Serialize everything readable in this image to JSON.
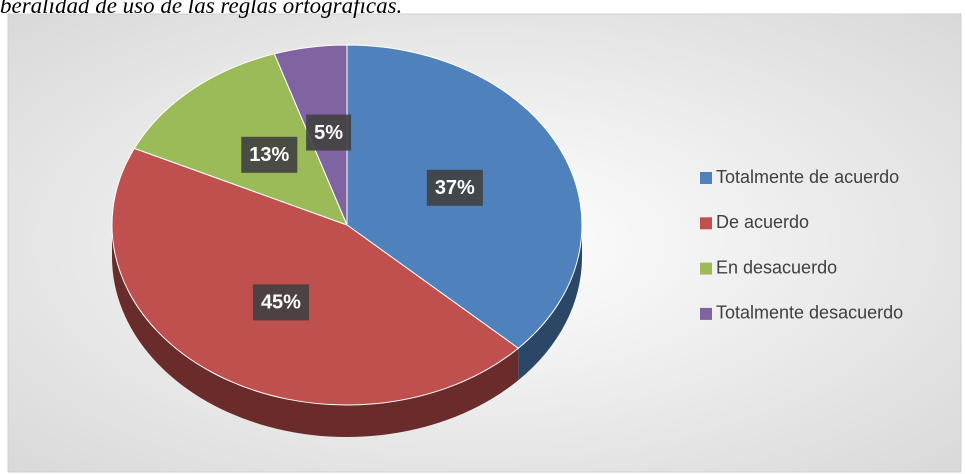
{
  "chart_data": {
    "type": "pie",
    "title": "beralidad de uso de las reglas ortográficas.",
    "categories": [
      "Totalmente de acuerdo",
      "De acuerdo",
      "En desacuerdo",
      "Totalmente desacuerdo"
    ],
    "values": [
      37,
      45,
      13,
      5
    ],
    "value_labels": [
      "37%",
      "45%",
      "13%",
      "5%"
    ],
    "colors": [
      "#4f81bd",
      "#c0504d",
      "#9bbb59",
      "#8064a2"
    ],
    "legend": "right"
  }
}
